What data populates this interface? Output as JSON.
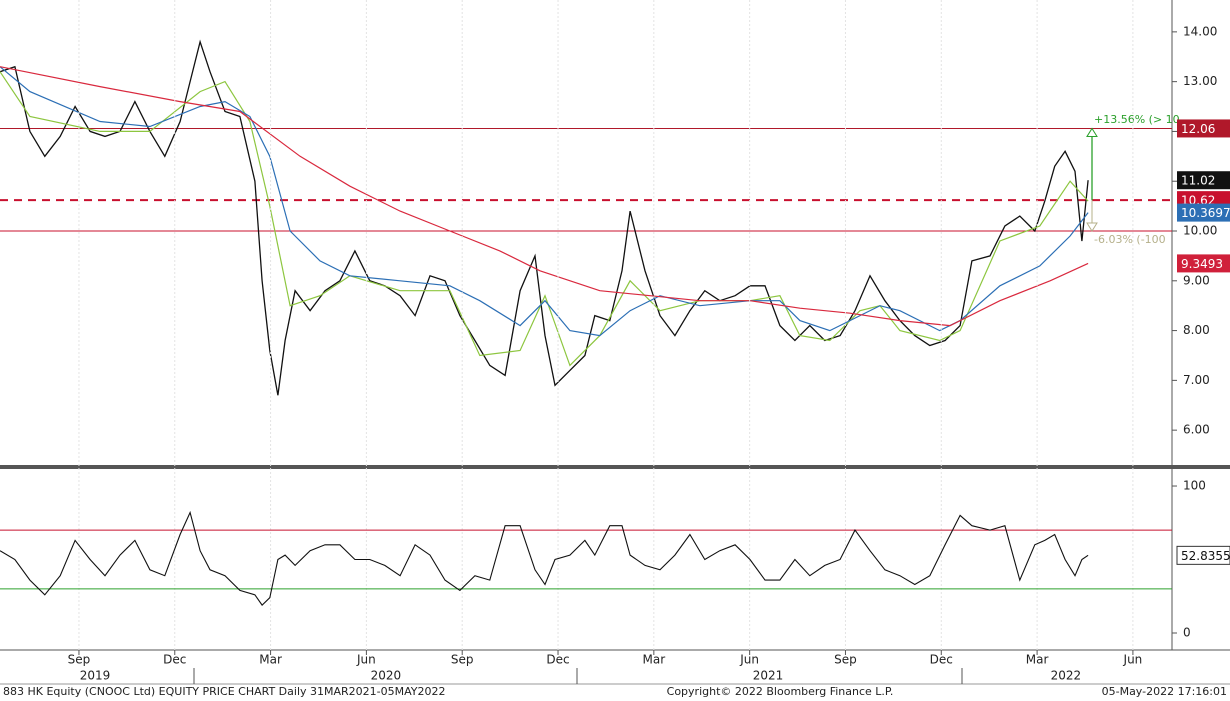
{
  "chart_data": [
    {
      "type": "line",
      "xlim": [
        2019.502,
        2022.56
      ],
      "ylim": [
        5.3,
        14.64
      ],
      "yticks": [
        {
          "value": 6,
          "label": "6.00"
        },
        {
          "value": 7,
          "label": "7.00"
        },
        {
          "value": 8,
          "label": "8.00"
        },
        {
          "value": 9,
          "label": "9.00"
        },
        {
          "value": 10,
          "label": "10.00"
        },
        {
          "value": 11,
          "label": "11.00"
        },
        {
          "value": 12,
          "label": "12.00"
        },
        {
          "value": 13,
          "label": "13.00"
        },
        {
          "value": 14,
          "label": "14.00"
        }
      ],
      "hlines": [
        {
          "value": 12.06,
          "color": "#b0182a",
          "dashed": false,
          "tag_color": "#b0182a"
        },
        {
          "value": 10.62,
          "color": "#c8102e",
          "dashed": true,
          "tag_color": "#c8102e"
        },
        {
          "value": 10,
          "color": "#c8102e",
          "dashed": false
        }
      ],
      "annotations": [
        "+13.56% (> 10",
        "-6.03% (-100"
      ],
      "series": [
        {
          "color": "#111111",
          "width": 1.3,
          "tag_color": "#111111",
          "x": [
            2019.502,
            2019.541,
            2019.58,
            2019.619,
            2019.659,
            2019.698,
            2019.737,
            2019.776,
            2019.815,
            2019.854,
            2019.893,
            2019.932,
            2019.972,
            2019.998,
            2020.024,
            2020.05,
            2020.089,
            2020.128,
            2020.167,
            2020.186,
            2020.206,
            2020.227,
            2020.246,
            2020.272,
            2020.311,
            2020.35,
            2020.389,
            2020.428,
            2020.467,
            2020.506,
            2020.546,
            2020.585,
            2020.624,
            2020.663,
            2020.702,
            2020.741,
            2020.78,
            2020.82,
            2020.859,
            2020.898,
            2020.924,
            2020.95,
            2020.989,
            2021.028,
            2021.054,
            2021.093,
            2021.125,
            2021.146,
            2021.185,
            2021.224,
            2021.263,
            2021.302,
            2021.341,
            2021.38,
            2021.42,
            2021.459,
            2021.498,
            2021.537,
            2021.576,
            2021.615,
            2021.654,
            2021.694,
            2021.733,
            2021.772,
            2021.811,
            2021.85,
            2021.889,
            2021.928,
            2021.968,
            2022.007,
            2022.038,
            2022.085,
            2022.124,
            2022.163,
            2022.202,
            2022.228,
            2022.254,
            2022.281,
            2022.307,
            2022.325,
            2022.341
          ],
          "values": [
            13.2,
            13.3,
            12.0,
            11.5,
            11.9,
            12.5,
            12.0,
            11.9,
            12.0,
            12.6,
            12.0,
            11.5,
            12.2,
            13.0,
            13.8,
            13.2,
            12.4,
            12.3,
            11.0,
            9.0,
            7.6,
            6.7,
            7.8,
            8.8,
            8.4,
            8.8,
            9.0,
            9.6,
            9.0,
            8.9,
            8.7,
            8.3,
            9.1,
            9.0,
            8.3,
            7.8,
            7.3,
            7.1,
            8.8,
            9.5,
            7.9,
            6.9,
            7.2,
            7.5,
            8.3,
            8.2,
            9.2,
            10.4,
            9.2,
            8.3,
            7.9,
            8.4,
            8.8,
            8.6,
            8.7,
            8.9,
            8.9,
            8.1,
            7.8,
            8.1,
            7.8,
            7.9,
            8.4,
            9.1,
            8.6,
            8.2,
            7.9,
            7.7,
            7.8,
            8.1,
            9.4,
            9.5,
            10.1,
            10.3,
            10.0,
            10.6,
            11.3,
            11.6,
            11.2,
            9.8,
            11.02
          ]
        },
        {
          "color": "#8dc63f",
          "width": 1.2,
          "x": [
            2019.502,
            2019.58,
            2019.763,
            2019.893,
            2020.024,
            2020.089,
            2020.154,
            2020.206,
            2020.259,
            2020.337,
            2020.415,
            2020.546,
            2020.676,
            2020.754,
            2020.859,
            2020.924,
            2020.989,
            2021.067,
            2021.146,
            2021.224,
            2021.328,
            2021.459,
            2021.537,
            2021.589,
            2021.667,
            2021.746,
            2021.798,
            2021.85,
            2021.954,
            2022.007,
            2022.111,
            2022.215,
            2022.294,
            2022.341
          ],
          "values": [
            13.2,
            12.3,
            12.0,
            12.0,
            12.8,
            13.0,
            12.2,
            10.5,
            8.5,
            8.7,
            9.1,
            8.8,
            8.8,
            7.5,
            7.6,
            8.7,
            7.3,
            7.9,
            9.0,
            8.4,
            8.6,
            8.6,
            8.7,
            7.9,
            7.8,
            8.4,
            8.5,
            8.0,
            7.8,
            8.0,
            9.8,
            10.1,
            11.0,
            10.6
          ]
        },
        {
          "color": "#2c6fb5",
          "width": 1.2,
          "tag_color": "#2c6fb5",
          "x": [
            2019.502,
            2019.58,
            2019.763,
            2019.893,
            2020.024,
            2020.089,
            2020.154,
            2020.206,
            2020.259,
            2020.337,
            2020.415,
            2020.546,
            2020.676,
            2020.754,
            2020.859,
            2020.924,
            2020.989,
            2021.067,
            2021.146,
            2021.224,
            2021.328,
            2021.459,
            2021.537,
            2021.589,
            2021.667,
            2021.746,
            2021.798,
            2021.85,
            2021.954,
            2022.007,
            2022.111,
            2022.215,
            2022.294,
            2022.341
          ],
          "values": [
            13.3,
            12.8,
            12.2,
            12.1,
            12.5,
            12.6,
            12.3,
            11.5,
            10.0,
            9.4,
            9.1,
            9.0,
            8.9,
            8.6,
            8.1,
            8.6,
            8.0,
            7.9,
            8.4,
            8.7,
            8.5,
            8.6,
            8.6,
            8.2,
            8.0,
            8.3,
            8.5,
            8.4,
            8.0,
            8.2,
            8.9,
            9.3,
            9.9,
            10.3697
          ]
        },
        {
          "color": "#d9293e",
          "width": 1.2,
          "tag_color": "#d0203a",
          "x": [
            2019.502,
            2019.763,
            2019.972,
            2020.128,
            2020.285,
            2020.415,
            2020.546,
            2020.676,
            2020.806,
            2020.911,
            2021.067,
            2021.198,
            2021.328,
            2021.459,
            2021.589,
            2021.72,
            2021.85,
            2021.981,
            2022.111,
            2022.242,
            2022.341
          ],
          "values": [
            13.3,
            12.9,
            12.6,
            12.4,
            11.5,
            10.9,
            10.4,
            10.0,
            9.6,
            9.2,
            8.8,
            8.7,
            8.6,
            8.6,
            8.45,
            8.35,
            8.2,
            8.1,
            8.6,
            9.0,
            9.3493
          ]
        }
      ]
    },
    {
      "type": "line",
      "xlim": [
        2019.502,
        2022.56
      ],
      "ylim": [
        -10.2,
        110.9
      ],
      "yticks": [
        0,
        100
      ],
      "hlines": [
        {
          "value": 70,
          "color": "#c8102e",
          "dashed": false
        },
        {
          "value": 30,
          "color": "#2ca02c",
          "dashed": false
        }
      ],
      "xticks": [
        {
          "value": 2019.708,
          "label": "Sep"
        },
        {
          "value": 2019.958,
          "label": "Dec"
        },
        {
          "value": 2020.208,
          "label": "Mar"
        },
        {
          "value": 2020.458,
          "label": "Jun"
        },
        {
          "value": 2020.708,
          "label": "Sep"
        },
        {
          "value": 2020.958,
          "label": "Dec"
        },
        {
          "value": 2021.208,
          "label": "Mar"
        },
        {
          "value": 2021.458,
          "label": "Jun"
        },
        {
          "value": 2021.708,
          "label": "Sep"
        },
        {
          "value": 2021.958,
          "label": "Dec"
        },
        {
          "value": 2022.208,
          "label": "Mar"
        },
        {
          "value": 2022.458,
          "label": "Jun"
        }
      ],
      "year_ticks": [
        {
          "value": 2019.75,
          "label": "2019"
        },
        {
          "value": 2020.509,
          "label": "2020"
        },
        {
          "value": 2021.506,
          "label": "2021"
        },
        {
          "value": 2022.283,
          "label": "2022"
        }
      ],
      "series": [
        {
          "color": "#111111",
          "width": 1.1,
          "tag_color": "#ffffff",
          "x": [
            2019.502,
            2019.541,
            2019.58,
            2019.619,
            2019.659,
            2019.698,
            2019.737,
            2019.776,
            2019.815,
            2019.854,
            2019.893,
            2019.932,
            2019.972,
            2019.998,
            2020.024,
            2020.05,
            2020.089,
            2020.128,
            2020.167,
            2020.186,
            2020.206,
            2020.227,
            2020.246,
            2020.272,
            2020.311,
            2020.35,
            2020.389,
            2020.428,
            2020.467,
            2020.506,
            2020.546,
            2020.585,
            2020.624,
            2020.663,
            2020.702,
            2020.741,
            2020.78,
            2020.82,
            2020.859,
            2020.898,
            2020.924,
            2020.95,
            2020.989,
            2021.028,
            2021.054,
            2021.093,
            2021.125,
            2021.146,
            2021.185,
            2021.224,
            2021.263,
            2021.302,
            2021.341,
            2021.38,
            2021.42,
            2021.459,
            2021.498,
            2021.537,
            2021.576,
            2021.615,
            2021.654,
            2021.694,
            2021.733,
            2021.772,
            2021.811,
            2021.85,
            2021.889,
            2021.928,
            2021.968,
            2022.007,
            2022.038,
            2022.085,
            2022.124,
            2022.163,
            2022.202,
            2022.228,
            2022.254,
            2022.281,
            2022.307,
            2022.325,
            2022.341
          ],
          "values": [
            56,
            50,
            36,
            26,
            39,
            63,
            50,
            39,
            53,
            63,
            43,
            39,
            67,
            82,
            56,
            43,
            39,
            29,
            26,
            19,
            24,
            50,
            53,
            46,
            56,
            60,
            60,
            50,
            50,
            46,
            39,
            60,
            53,
            36,
            29,
            39,
            36,
            73,
            73,
            43,
            33,
            50,
            53,
            63,
            53,
            73,
            73,
            53,
            46,
            43,
            53,
            67,
            50,
            56,
            60,
            50,
            36,
            36,
            50,
            39,
            46,
            50,
            70,
            56,
            43,
            39,
            33,
            39,
            60,
            80,
            73,
            70,
            73,
            36,
            60,
            63,
            67,
            50,
            39,
            50,
            52.8355
          ]
        }
      ]
    }
  ],
  "footer": {
    "left": "883 HK Equity (CNOOC Ltd) EQUITY PRICE CHART  Daily 31MAR2021-05MAY2022",
    "center": "Copyright© 2022 Bloomberg Finance L.P.",
    "right": "05-May-2022 17:16:01"
  }
}
